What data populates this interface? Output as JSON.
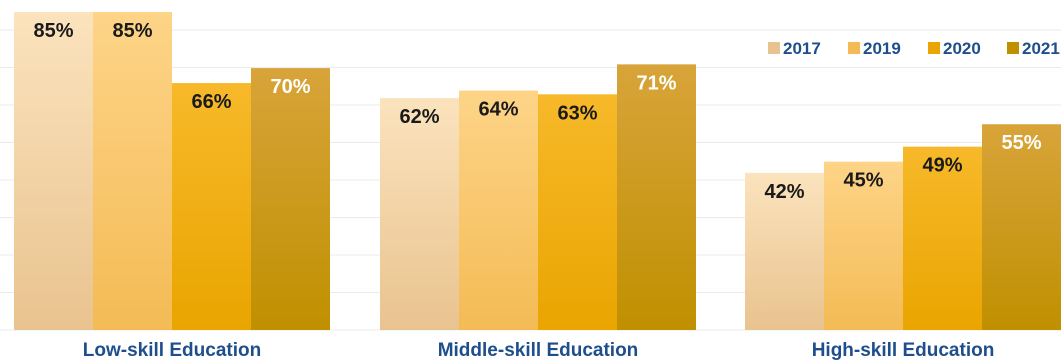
{
  "chart_data": {
    "type": "bar",
    "categories": [
      "Low-skill Education",
      "Middle-skill Education",
      "High-skill Education"
    ],
    "series": [
      {
        "name": "2017",
        "values": [
          85,
          62,
          42
        ],
        "color_top": "#fbe3bd",
        "color_bottom": "#e9c38f"
      },
      {
        "name": "2019",
        "values": [
          85,
          64,
          45
        ],
        "color_top": "#fdd488",
        "color_bottom": "#f4bb55"
      },
      {
        "name": "2020",
        "values": [
          66,
          63,
          49
        ],
        "color_top": "#f7b92a",
        "color_bottom": "#e9a500"
      },
      {
        "name": "2021",
        "values": [
          70,
          71,
          55
        ],
        "color_top": "#d8a43a",
        "color_bottom": "#c09000"
      }
    ],
    "value_suffix": "%",
    "ylim": [
      0,
      85
    ],
    "grid": true,
    "legend_position": "top-right",
    "title": "",
    "xlabel": "",
    "ylabel": ""
  }
}
